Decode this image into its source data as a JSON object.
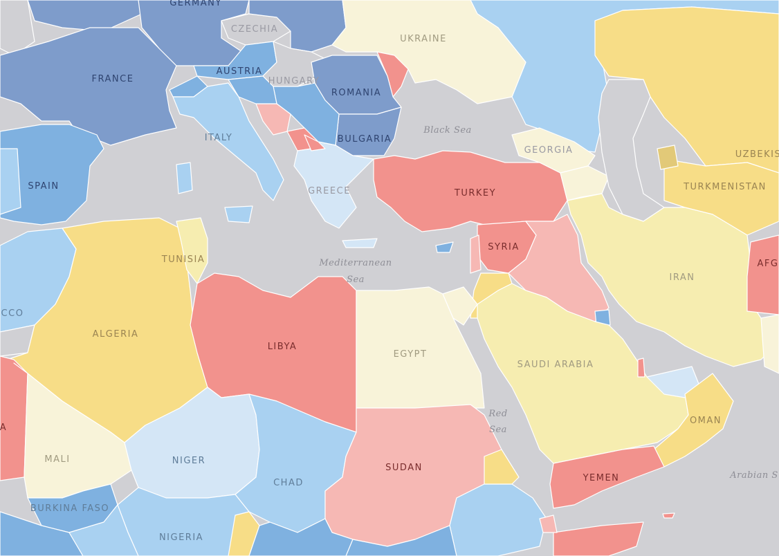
{
  "palette": {
    "dark_blue": "#7e9ccb",
    "mid_blue": "#7fb1e0",
    "light_blue": "#a9d1f1",
    "pale_blue": "#d4e6f6",
    "cream": "#f8f3d9",
    "pale_yellow": "#f6edb0",
    "yellow": "#f7dd87",
    "pink": "#f6b8b4",
    "red": "#f2928d",
    "grey": "#d0d0d4"
  },
  "countries": {
    "germany": "GERMANY",
    "czechia": "CZECHIA",
    "ukraine": "UKRAINE",
    "france": "FRANCE",
    "austria": "AUSTRIA",
    "hungary": "HUNGARY",
    "romania": "ROMANIA",
    "italy": "ITALY",
    "bulgaria": "BULGARIA",
    "georgia": "GEORGIA",
    "uzbekistan": "UZBEKIS",
    "spain": "SPAIN",
    "greece": "GREECE",
    "turkey": "TURKEY",
    "turkmenistan": "TURKMENISTAN",
    "syria": "SYRIA",
    "tunisia": "TUNISIA",
    "afghanistan": "AFG",
    "iran": "IRAN",
    "morocco": "CCO",
    "algeria": "ALGERIA",
    "libya": "LIBYA",
    "egypt": "EGYPT",
    "saudi_arabia": "SAUDI ARABIA",
    "oman": "OMAN",
    "mali": "MALI",
    "mauritania": "A",
    "niger": "NIGER",
    "chad": "CHAD",
    "sudan": "SUDAN",
    "yemen": "YEMEN",
    "burkina_faso": "BURKINA FASO",
    "nigeria": "NIGERIA"
  },
  "seas": {
    "black_sea": "Black Sea",
    "mediterranean_1": "Mediterranean",
    "mediterranean_2": "Sea",
    "red_sea_1": "Red",
    "red_sea_2": "Sea",
    "arabian_sea": "Arabian S"
  }
}
